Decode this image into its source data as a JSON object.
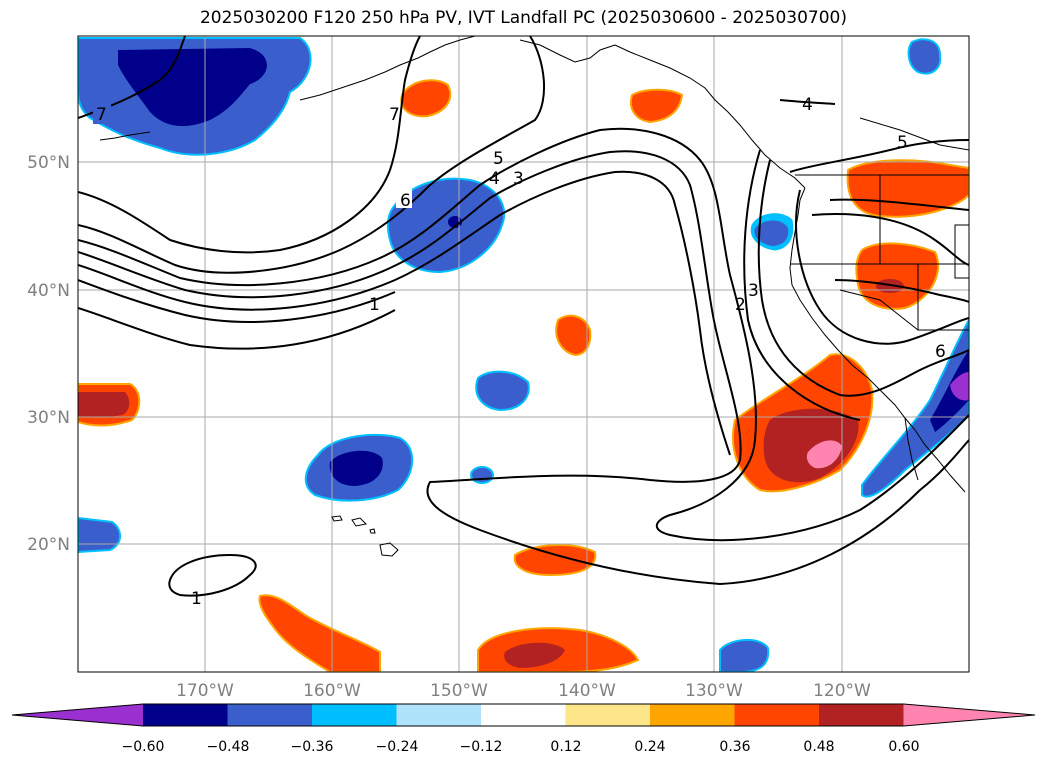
{
  "title": "2025030200 F120 250 hPa PV, IVT Landfall PC (2025030600 - 2025030700)",
  "lat_labels": [
    "50°N",
    "40°N",
    "30°N",
    "20°N"
  ],
  "lon_labels": [
    "170°W",
    "160°W",
    "150°W",
    "140°W",
    "130°W",
    "120°W"
  ],
  "contour_labels": [
    "7",
    "6",
    "5",
    "4",
    "3",
    "1",
    "4",
    "5",
    "3",
    "2",
    "7",
    "6",
    "1"
  ],
  "colorbar": {
    "ticks": [
      "−0.60",
      "−0.48",
      "−0.36",
      "−0.24",
      "−0.12",
      "0.12",
      "0.24",
      "0.36",
      "0.48",
      "0.60"
    ],
    "colors": [
      "#9b30d0",
      "#00008b",
      "#3a5fcd",
      "#00bfff",
      "#aee3fb",
      "#ffffff",
      "#fde68a",
      "#ffa500",
      "#ff4500",
      "#b22222",
      "#ff85b0"
    ]
  },
  "palette": {
    "land_outline": "#000000",
    "grid": "#a9a9a9",
    "contour": "#000000"
  }
}
